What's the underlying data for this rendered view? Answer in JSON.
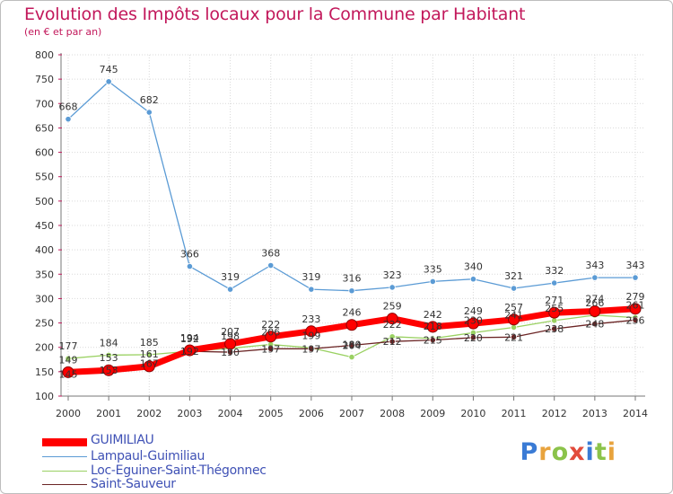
{
  "title": "Evolution des Impôts locaux pour la Commune par Habitant",
  "subtitle": "(en € et par an)",
  "brand": "Proxiti",
  "chart_data": {
    "type": "line",
    "x": [
      2000,
      2001,
      2002,
      2003,
      2004,
      2005,
      2006,
      2007,
      2008,
      2009,
      2010,
      2011,
      2012,
      2013,
      2014
    ],
    "ylim": [
      100,
      800
    ],
    "yticks": [
      100,
      150,
      200,
      250,
      300,
      350,
      400,
      450,
      500,
      550,
      600,
      650,
      700,
      750,
      800
    ],
    "grid": true,
    "legend_position": "bottom-left",
    "series": [
      {
        "name": "GUIMILIAU",
        "color": "#ff0000",
        "values": [
          149,
          153,
          161,
          194,
          207,
          222,
          233,
          246,
          259,
          242,
          249,
          257,
          271,
          274,
          279
        ]
      },
      {
        "name": "Lampaul-Guimiliau",
        "color": "#5b9bd5",
        "values": [
          668,
          745,
          682,
          366,
          319,
          368,
          319,
          316,
          323,
          335,
          340,
          321,
          332,
          343,
          343
        ]
      },
      {
        "name": "Loc-Eguiner-Saint-Thégonnec",
        "color": "#9ad162",
        "values": [
          177,
          184,
          185,
          192,
          198,
          206,
          199,
          180,
          222,
          218,
          230,
          241,
          255,
          266,
          261
        ]
      },
      {
        "name": "Saint-Sauveur",
        "color": "#6b2525",
        "values": [
          145,
          153,
          167,
          192,
          190,
          197,
          197,
          204,
          212,
          215,
          220,
          221,
          238,
          248,
          256
        ]
      }
    ],
    "label_positions": {
      "GUIMILIAU": "above",
      "Lampaul-Guimiliau": "above",
      "Loc-Eguiner-Saint-Thégonnec": "above",
      "Saint-Sauveur": "center"
    }
  }
}
